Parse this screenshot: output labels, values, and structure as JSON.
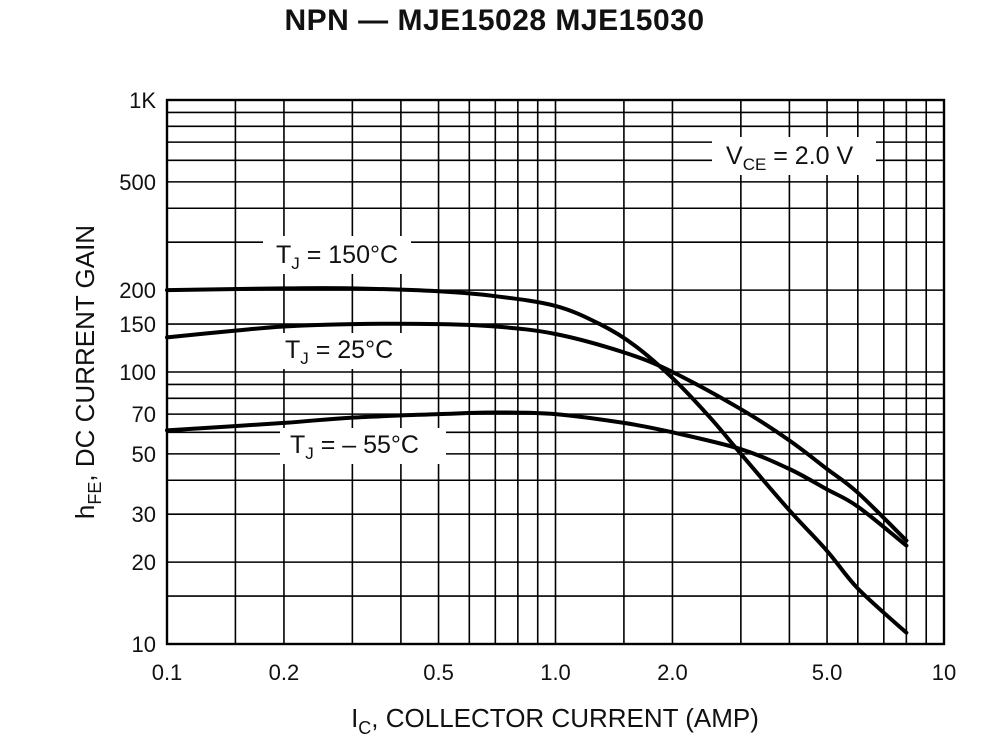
{
  "chart_data": {
    "type": "line",
    "title": "NPN — MJE15028 MJE15030",
    "xlabel_main": "I",
    "xlabel_sub": "C",
    "xlabel_rest": ", COLLECTOR CURRENT (AMP)",
    "ylabel_main": "h",
    "ylabel_sub": "FE",
    "ylabel_rest": ", DC CURRENT GAIN",
    "x_scale": "log",
    "y_scale": "log",
    "xlim": [
      0.1,
      10
    ],
    "ylim": [
      10,
      1000
    ],
    "grid": true,
    "x_ticks": [
      {
        "value": 0.1,
        "label": "0.1"
      },
      {
        "value": 0.2,
        "label": "0.2"
      },
      {
        "value": 0.5,
        "label": "0.5"
      },
      {
        "value": 1.0,
        "label": "1.0"
      },
      {
        "value": 2.0,
        "label": "2.0"
      },
      {
        "value": 5.0,
        "label": "5.0"
      },
      {
        "value": 10,
        "label": "10"
      }
    ],
    "y_ticks": [
      {
        "value": 10,
        "label": "10"
      },
      {
        "value": 20,
        "label": "20"
      },
      {
        "value": 30,
        "label": "30"
      },
      {
        "value": 50,
        "label": "50"
      },
      {
        "value": 70,
        "label": "70"
      },
      {
        "value": 100,
        "label": "100"
      },
      {
        "value": 150,
        "label": "150"
      },
      {
        "value": 200,
        "label": "200"
      },
      {
        "value": 500,
        "label": "500"
      },
      {
        "value": 1000,
        "label": "1K"
      }
    ],
    "x_gridlines": [
      0.1,
      0.15,
      0.2,
      0.3,
      0.4,
      0.5,
      0.6,
      0.7,
      0.8,
      0.9,
      1,
      1.5,
      2,
      3,
      4,
      5,
      6,
      7,
      8,
      9,
      10
    ],
    "y_gridlines": [
      10,
      15,
      20,
      30,
      40,
      50,
      60,
      70,
      80,
      90,
      100,
      150,
      200,
      300,
      400,
      500,
      600,
      700,
      800,
      900,
      1000
    ],
    "condition_annotation": {
      "main": "V",
      "sub": "CE",
      "rest": " = 2.0 V"
    },
    "series": [
      {
        "label_main": "T",
        "label_sub": "J",
        "label_rest": " = 150°C",
        "x": [
          0.1,
          0.2,
          0.3,
          0.5,
          0.7,
          1.0,
          1.3,
          1.6,
          2.0,
          2.5,
          3.0,
          4.0,
          5.0,
          6.0,
          8.0
        ],
        "y": [
          200,
          203,
          203,
          198,
          190,
          175,
          150,
          125,
          95,
          68,
          50,
          31,
          22,
          16,
          11
        ]
      },
      {
        "label_main": "T",
        "label_sub": "J",
        "label_rest": " = 25°C",
        "x": [
          0.1,
          0.15,
          0.2,
          0.3,
          0.5,
          0.7,
          1.0,
          1.5,
          2.0,
          3.0,
          4.0,
          5.0,
          6.0,
          8.0
        ],
        "y": [
          134,
          142,
          147,
          150,
          150,
          147,
          138,
          118,
          100,
          73,
          56,
          44,
          36,
          24
        ]
      },
      {
        "label_main": "T",
        "label_sub": "J",
        "label_rest": " = – 55°C",
        "x": [
          0.1,
          0.2,
          0.3,
          0.5,
          0.7,
          1.0,
          1.5,
          2.0,
          3.0,
          4.0,
          5.0,
          6.0,
          8.0
        ],
        "y": [
          61,
          65,
          68,
          70,
          71,
          70,
          65,
          60,
          52,
          44,
          37,
          32,
          23
        ]
      }
    ]
  }
}
